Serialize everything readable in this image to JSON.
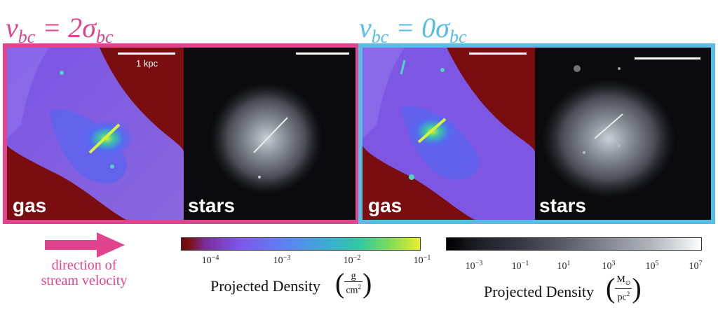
{
  "colors": {
    "left_frame": "#e0448e",
    "right_frame": "#56bde6",
    "arrow": "#e0448e",
    "gas_background": "#7a0d0f"
  },
  "left": {
    "title_var": "v",
    "title_sub": "bc",
    "title_mid": " = 2σ",
    "title_sub2": "bc",
    "gas_label": "gas",
    "stars_label": "stars",
    "scale_label": "1 kpc"
  },
  "right": {
    "title_var": "v",
    "title_sub": "bc",
    "title_mid": " = 0σ",
    "title_sub2": "bc",
    "gas_label": "gas",
    "stars_label": "stars"
  },
  "arrow_caption": {
    "line1": "direction of",
    "line2": "stream velocity"
  },
  "gas_colorbar": {
    "title": "Projected Density",
    "unit_num": "g",
    "unit_den": "cm",
    "unit_den_exp": "2",
    "ticks": [
      {
        "base": "10",
        "exp": "−4"
      },
      {
        "base": "10",
        "exp": "−3"
      },
      {
        "base": "10",
        "exp": "−2"
      },
      {
        "base": "10",
        "exp": "−1"
      }
    ]
  },
  "star_colorbar": {
    "title": "Projected Density",
    "unit_num": "M",
    "unit_num_sub": "⊙",
    "unit_den": "pc",
    "unit_den_exp": "2",
    "ticks": [
      {
        "base": "10",
        "exp": "−3"
      },
      {
        "base": "10",
        "exp": "−1"
      },
      {
        "base": "10",
        "exp": "1"
      },
      {
        "base": "10",
        "exp": "3"
      },
      {
        "base": "10",
        "exp": "5"
      },
      {
        "base": "10",
        "exp": "7"
      }
    ]
  }
}
